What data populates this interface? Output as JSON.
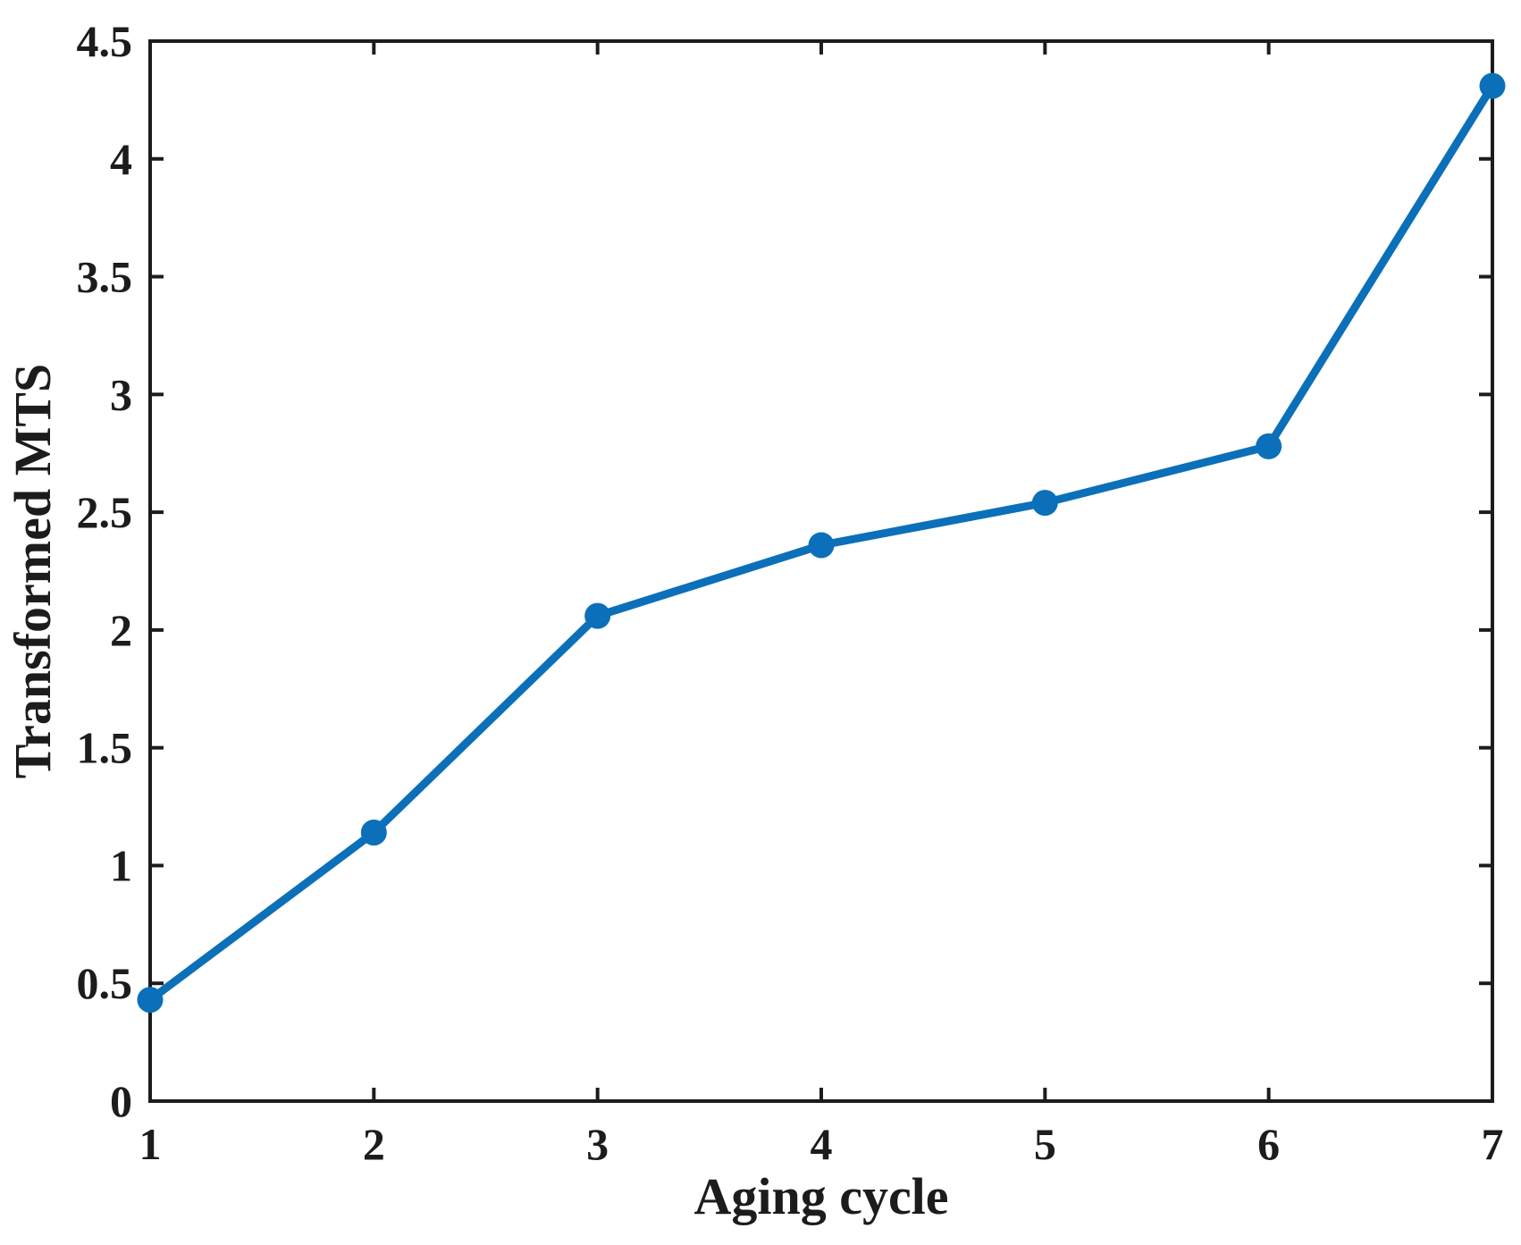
{
  "chart_data": {
    "type": "line",
    "title": "",
    "xlabel": "Aging cycle",
    "ylabel": "Transformed MTS",
    "x": [
      1,
      2,
      3,
      4,
      5,
      6,
      7
    ],
    "series": [
      {
        "name": "Transformed MTS",
        "values": [
          0.43,
          1.14,
          2.06,
          2.36,
          2.54,
          2.78,
          4.31
        ]
      }
    ],
    "xlim": [
      1,
      7
    ],
    "ylim": [
      0,
      4.5
    ],
    "xticks": [
      1,
      2,
      3,
      4,
      5,
      6,
      7
    ],
    "xtick_labels": [
      "1",
      "2",
      "3",
      "4",
      "5",
      "6",
      "7"
    ],
    "yticks": [
      0,
      0.5,
      1,
      1.5,
      2,
      2.5,
      3,
      3.5,
      4,
      4.5
    ],
    "ytick_labels": [
      "0",
      "0.5",
      "1",
      "1.5",
      "2",
      "2.5",
      "3",
      "3.5",
      "4",
      "4.5"
    ],
    "grid": false,
    "legend": "none",
    "box": true,
    "tick_direction": "in",
    "marker": "circle",
    "line_color": "#0b70b9",
    "marker_color": "#0b70b9",
    "axis_color": "#1c1c1c",
    "text_color": "#1c1c1c",
    "background_color": "#ffffff"
  }
}
